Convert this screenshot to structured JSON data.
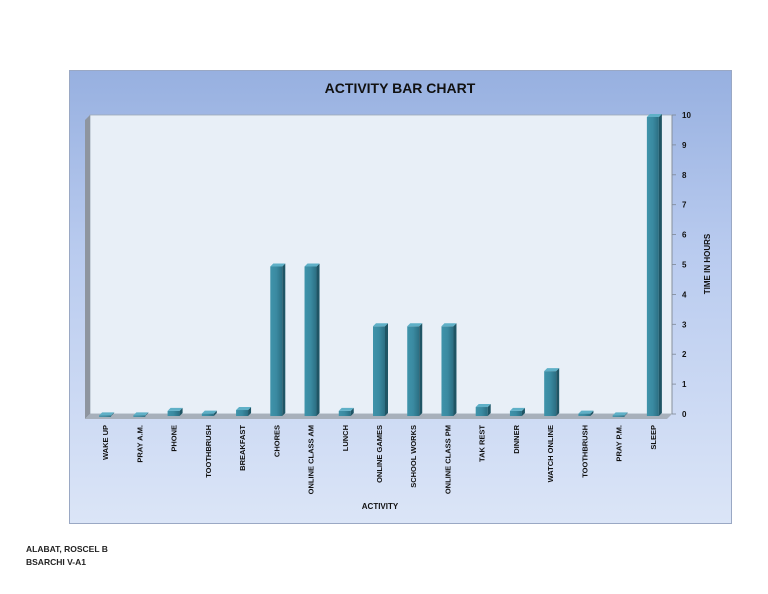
{
  "chart_data": {
    "type": "bar",
    "title": "ACTIVITY BAR CHART",
    "xlabel": "ACTIVITY",
    "ylabel": "TIME IN HOURS",
    "ylim": [
      0,
      10
    ],
    "yticks": [
      0,
      1,
      2,
      3,
      4,
      5,
      6,
      7,
      8,
      9,
      10
    ],
    "y_axis_side": "right",
    "style": "3d-column",
    "categories": [
      "WAKE UP",
      "PRAY A.M.",
      "PHONE",
      "TOOTHBRUSH",
      "BREAKFAST",
      "CHORES",
      "ONLINE CLASS AM",
      "LUNCH",
      "ONLINE GAMES",
      "SCHOOL WORKS",
      "ONLINE CLASS PM",
      "TAK REST",
      "DINNER",
      "WATCH ONLINE",
      "TOOTHBRUSH",
      "PRAY P.M.",
      "SLEEP"
    ],
    "values": [
      0.02,
      0.02,
      0.17,
      0.08,
      0.2,
      5,
      5,
      0.17,
      3,
      3,
      3,
      0.3,
      0.17,
      1.5,
      0.08,
      0.02,
      10
    ],
    "bar_color": "#2f7f96",
    "grid": false
  },
  "footer": {
    "name": "ALABAT, ROSCEL B",
    "section": "BSARCHI V-A1"
  }
}
